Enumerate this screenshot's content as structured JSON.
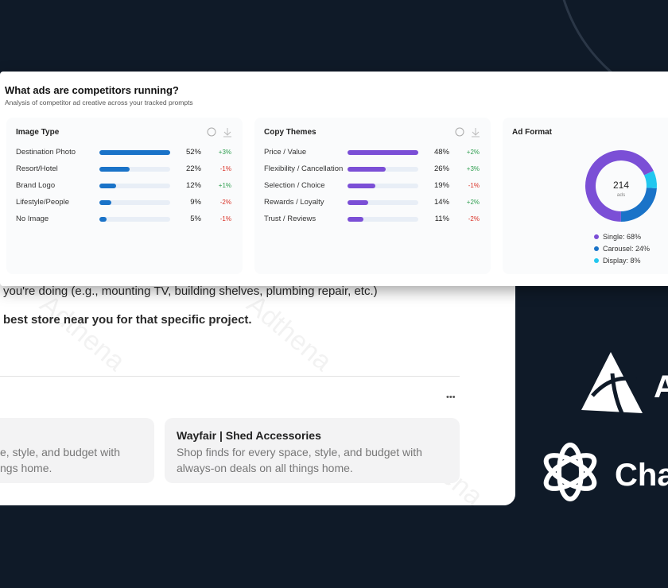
{
  "panel": {
    "title": "What ads are competitors running?",
    "subtitle": "Analysis of competitor ad creative across your tracked prompts"
  },
  "chart_data": [
    {
      "type": "bar",
      "orientation": "horizontal",
      "title": "Image Type",
      "categories": [
        "Destination Photo",
        "Resort/Hotel",
        "Brand Logo",
        "Lifestyle/People",
        "No Image"
      ],
      "values": [
        52,
        22,
        12,
        9,
        5
      ],
      "value_labels": [
        "52%",
        "22%",
        "12%",
        "9%",
        "5%"
      ],
      "change_labels": [
        "+3%",
        "-1%",
        "+1%",
        "-2%",
        "-1%"
      ],
      "color": "#1a73c8",
      "xlim": [
        0,
        52
      ]
    },
    {
      "type": "bar",
      "orientation": "horizontal",
      "title": "Copy Themes",
      "categories": [
        "Price / Value",
        "Flexibility / Cancellation",
        "Selection / Choice",
        "Rewards / Loyalty",
        "Trust / Reviews"
      ],
      "values": [
        48,
        26,
        19,
        14,
        11
      ],
      "value_labels": [
        "48%",
        "26%",
        "19%",
        "14%",
        "11%"
      ],
      "change_labels": [
        "+2%",
        "+3%",
        "-1%",
        "+2%",
        "-2%"
      ],
      "color": "#7b4fd6",
      "xlim": [
        0,
        48
      ]
    },
    {
      "type": "donut",
      "title": "Ad Format",
      "center_value": 214,
      "center_label": "ads",
      "categories": [
        "Single: 68%",
        "Carousel: 24%",
        "Display: 8%"
      ],
      "values": [
        68,
        24,
        8
      ],
      "colors": [
        "#7b4fd6",
        "#1a73c8",
        "#22c7ef"
      ]
    }
  ],
  "background": {
    "line1": "you're doing (e.g., mounting TV, building shelves, plumbing repair, etc.)",
    "line2": "best store near you for that specific project.",
    "more": "•••",
    "left_card": [
      "e, style, and budget with",
      "ngs home."
    ],
    "right_card": {
      "title": "Wayfair | Shed Accessories",
      "text": [
        "Shop finds for every space, style, and budget with",
        "always-on deals on all things home."
      ]
    }
  },
  "logos": {
    "adthena": "A",
    "chatgpt": "Cha"
  },
  "watermark": "Adthena"
}
